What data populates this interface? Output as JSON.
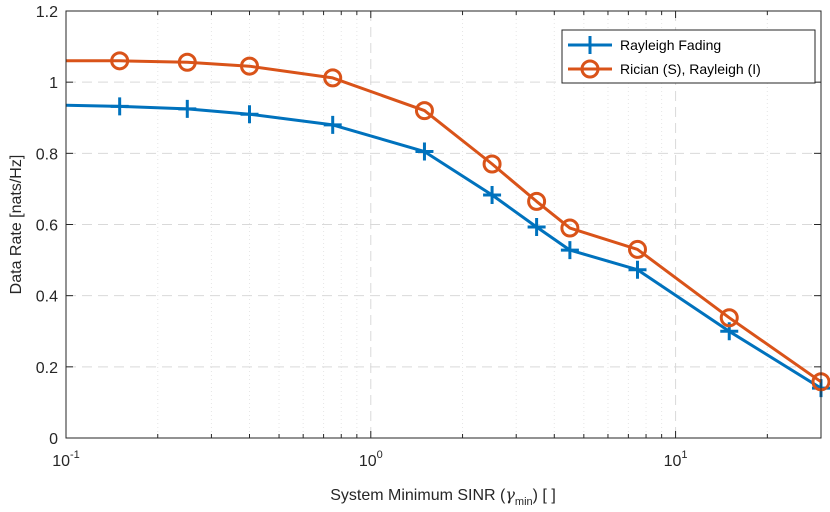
{
  "chart_data": {
    "type": "line",
    "xscale": "log",
    "xlim": [
      0.1,
      30
    ],
    "ylim": [
      0,
      1.2
    ],
    "xlabel_prefix": "System Minimum SINR (",
    "xlabel_symbol": "γ",
    "xlabel_subscript": "min",
    "xlabel_suffix": ") [ ]",
    "ylabel": "Data Rate [nats/Hz]",
    "x_ticks": [
      {
        "base": "10",
        "exp": "-1"
      },
      {
        "base": "10",
        "exp": "0"
      },
      {
        "base": "10",
        "exp": "1"
      }
    ],
    "y_ticks": [
      "0",
      "0.2",
      "0.4",
      "0.6",
      "0.8",
      "1",
      "1.2"
    ],
    "grid": true,
    "legend_position": "top-right",
    "series": [
      {
        "name": "Rayleigh Fading",
        "color": "#0072BD",
        "marker": "plus",
        "x": [
          0.1,
          0.15,
          0.25,
          0.4,
          0.75,
          1.5,
          2.5,
          3.5,
          4.5,
          7.5,
          15,
          30
        ],
        "y": [
          0.935,
          0.932,
          0.925,
          0.91,
          0.88,
          0.805,
          0.683,
          0.593,
          0.528,
          0.473,
          0.3,
          0.14
        ]
      },
      {
        "name": "Rician (S), Rayleigh (I)",
        "color": "#D95319",
        "marker": "circle",
        "x": [
          0.1,
          0.15,
          0.25,
          0.4,
          0.75,
          1.5,
          2.5,
          3.5,
          4.5,
          7.5,
          15,
          30
        ],
        "y": [
          1.06,
          1.06,
          1.056,
          1.045,
          1.012,
          0.92,
          0.77,
          0.665,
          0.59,
          0.53,
          0.338,
          0.158
        ]
      }
    ]
  }
}
